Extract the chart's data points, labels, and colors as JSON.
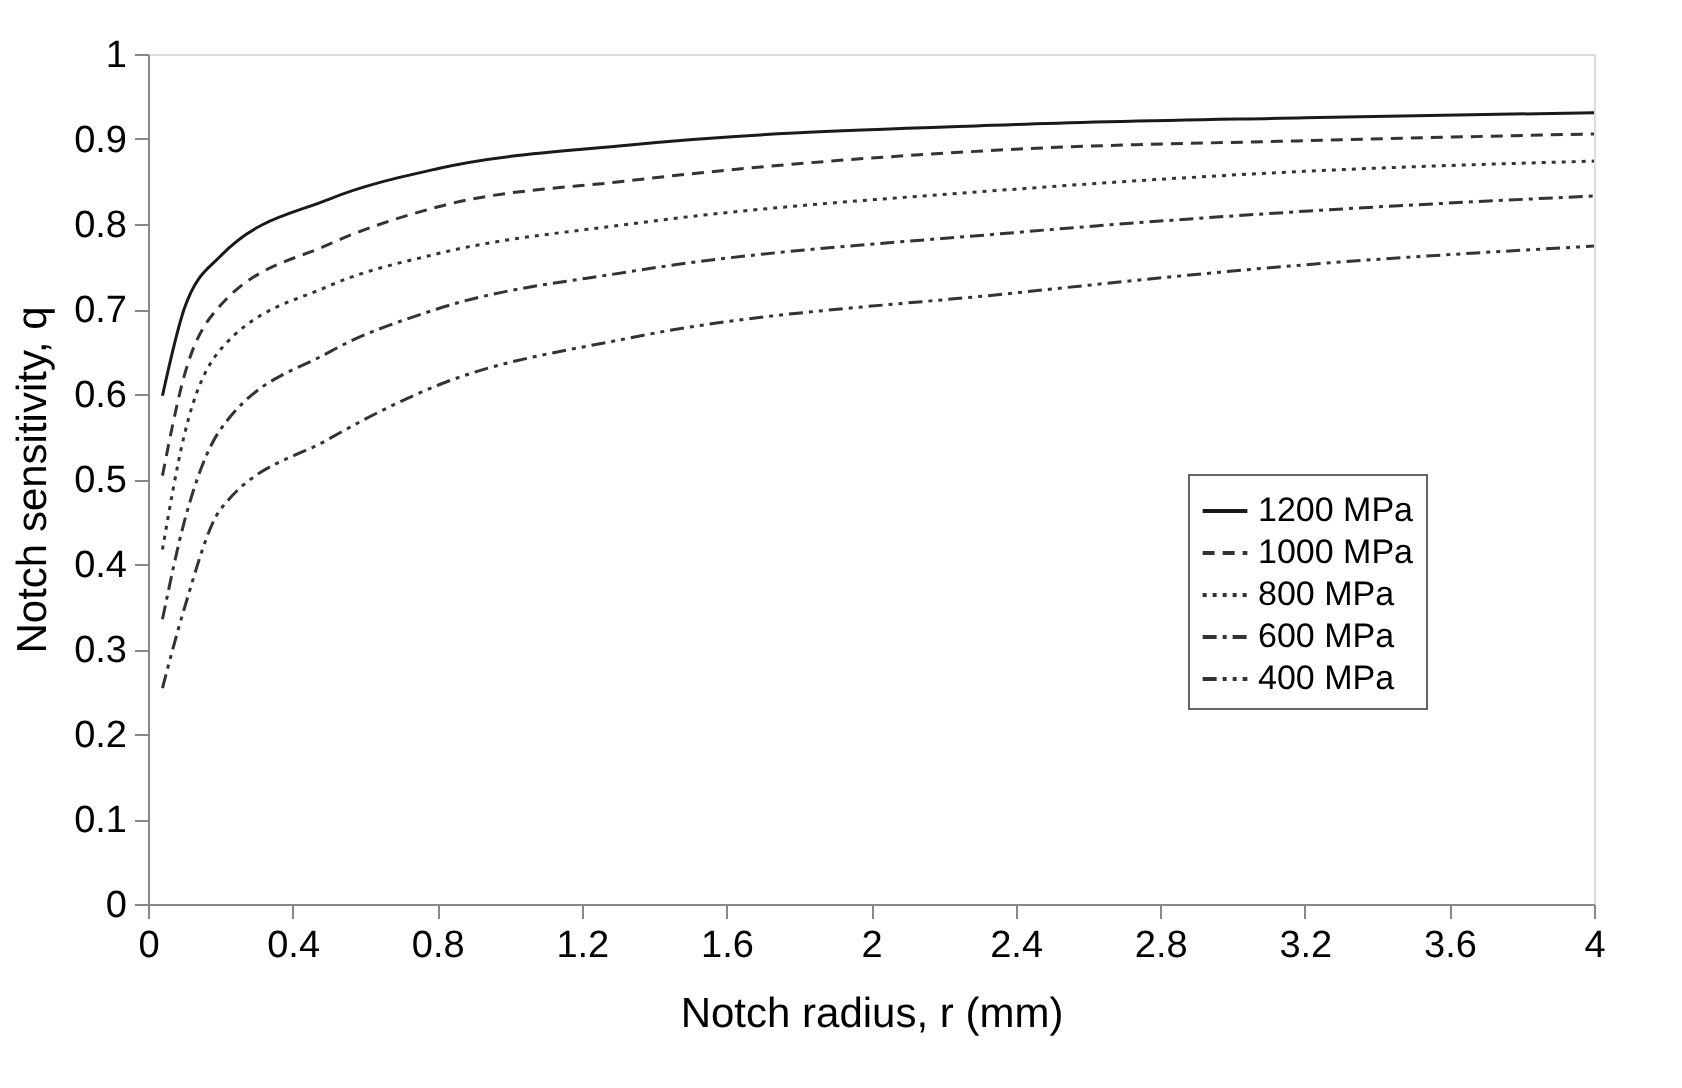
{
  "chart_data": {
    "type": "line",
    "xlabel": "Notch radius, r (mm)",
    "ylabel": "Notch sensitivity, q",
    "x": [
      0.04,
      0.1,
      0.2,
      0.5,
      0.8,
      1.333,
      2.4,
      3.2,
      4.0
    ],
    "series": [
      {
        "name": "1200 MPa",
        "color": "#1a1a1a",
        "line_style": "solid",
        "values": [
          0.598,
          0.7,
          0.762,
          0.829,
          0.865,
          0.893,
          0.917,
          0.925,
          0.931
        ]
      },
      {
        "name": "1000 MPa",
        "color": "#333333",
        "line_style": "dashed",
        "values": [
          0.504,
          0.621,
          0.704,
          0.776,
          0.82,
          0.851,
          0.888,
          0.898,
          0.906
        ]
      },
      {
        "name": "800 MPa",
        "color": "#333333",
        "line_style": "dotted",
        "values": [
          0.417,
          0.551,
          0.652,
          0.727,
          0.765,
          0.8,
          0.841,
          0.862,
          0.874
        ]
      },
      {
        "name": "600 MPa",
        "color": "#333333",
        "line_style": "dashdot",
        "values": [
          0.335,
          0.449,
          0.558,
          0.649,
          0.7,
          0.744,
          0.79,
          0.815,
          0.833
        ]
      },
      {
        "name": "400 MPa",
        "color": "#333333",
        "line_style": "dashdotdot",
        "values": [
          0.254,
          0.347,
          0.464,
          0.547,
          0.61,
          0.666,
          0.719,
          0.752,
          0.774
        ]
      }
    ],
    "xlim": [
      0,
      4
    ],
    "xticks": [
      0,
      0.4,
      0.8,
      1.2,
      1.6,
      2,
      2.4,
      2.8,
      3.2,
      3.6,
      4
    ],
    "ylim": [
      0,
      1
    ],
    "yticks": [
      0,
      0.1,
      0.2,
      0.3,
      0.4,
      0.5,
      0.6,
      0.7,
      0.8,
      0.9,
      1
    ],
    "grid": false,
    "legend": "right",
    "marker": "none"
  }
}
